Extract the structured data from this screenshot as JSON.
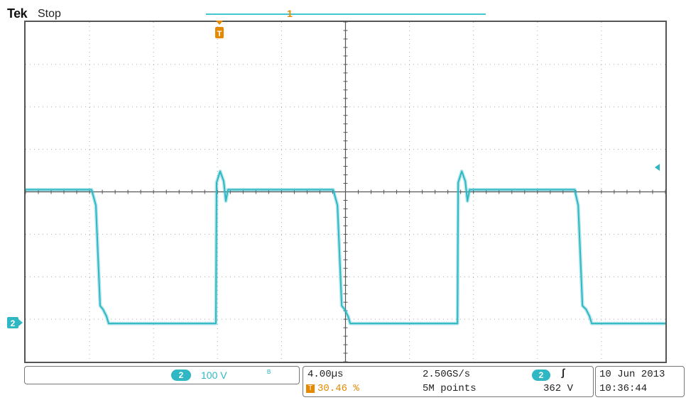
{
  "header": {
    "brand": "Tek",
    "run_status": "Stop",
    "record_marker": "1"
  },
  "scope_screen": {
    "trace_color": "#2fb8c4",
    "trigger_color": "#e58a00",
    "divisions_x": 10,
    "divisions_y": 8,
    "waveform_state_at_edges": "square wave, ch2",
    "trigger_marker_label": "T",
    "ground_marker_label": "2"
  },
  "channel_readout": {
    "channel": "2",
    "scale": "100 V",
    "bandwidth_icon": "bw-limit-icon",
    "bandwidth_glyph": "ᴮ"
  },
  "acquisition_readout": {
    "timebase": "4.00µs",
    "sample_rate": "2.50GS/s",
    "trigger_position": "30.46 %",
    "trigger_badge": "T",
    "record_length": "5M points",
    "trigger_channel": "2",
    "trigger_slope_glyph": "∫",
    "trigger_level": "362 V"
  },
  "datetime": {
    "date": "10 Jun  2013",
    "time": "10:36:44"
  }
}
